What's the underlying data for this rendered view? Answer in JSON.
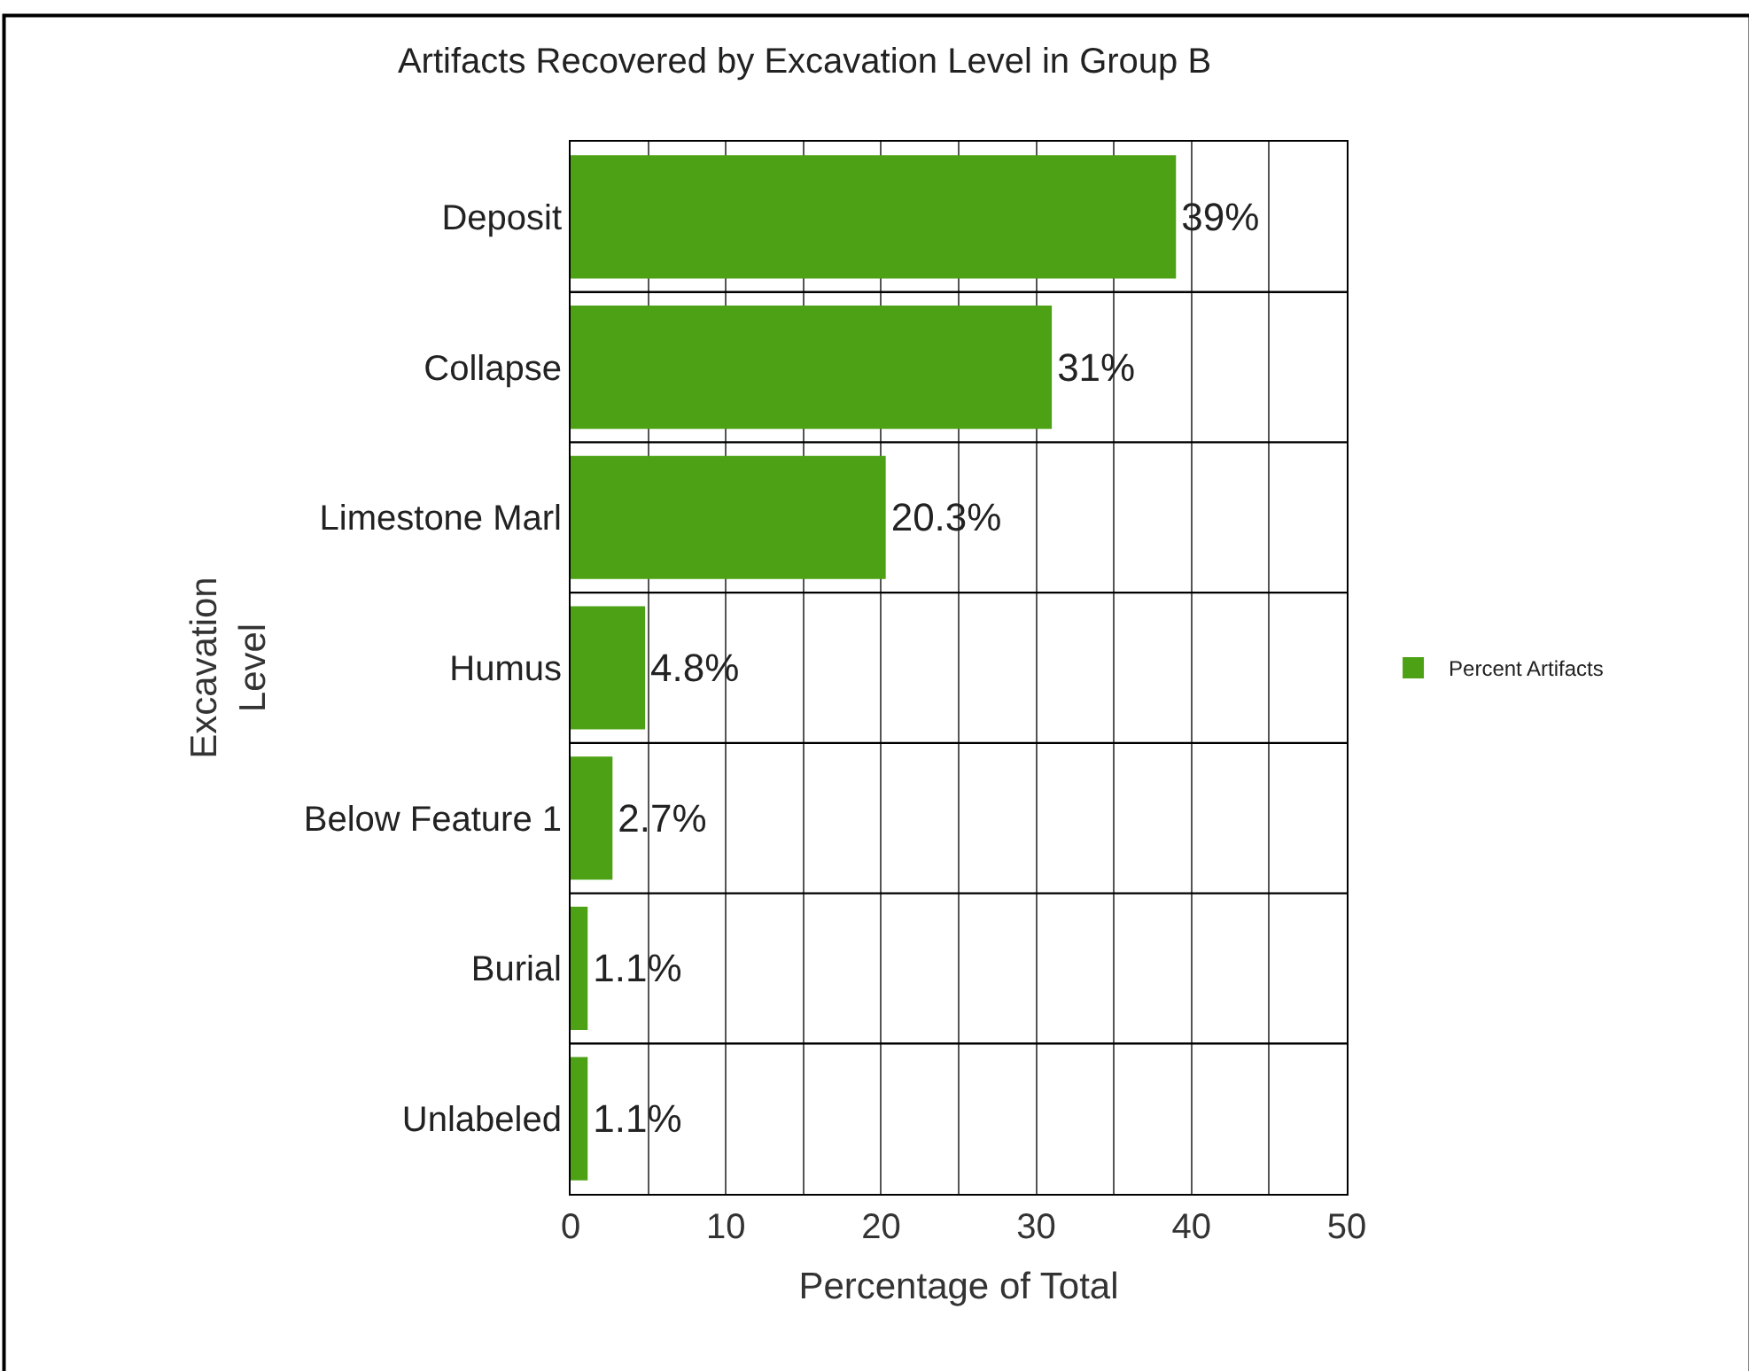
{
  "chart_data": {
    "type": "bar",
    "orientation": "horizontal",
    "title": "Artifacts Recovered by Excavation Level in Group B",
    "xlabel": "Percentage of Total",
    "ylabel": "Excavation\nLevel",
    "categories": [
      "Deposit",
      "Collapse",
      "Limestone Marl",
      "Humus",
      "Below Feature 1",
      "Burial",
      "Unlabeled"
    ],
    "series": [
      {
        "name": "Percent Artifacts",
        "color": "#4ca214",
        "values": [
          39,
          31,
          20.3,
          4.8,
          2.7,
          1.1,
          1.1
        ],
        "value_labels": [
          "39%",
          "31%",
          "20.3%",
          "4.8%",
          "2.7%",
          "1.1%",
          "1.1%"
        ]
      }
    ],
    "xlim": [
      0,
      50
    ],
    "xticks": [
      0,
      {
        "value": 5,
        "label": null
      },
      10,
      {
        "value": 15,
        "label": null
      },
      20,
      {
        "value": 25,
        "label": null
      },
      30,
      {
        "value": 35,
        "label": null
      },
      40,
      {
        "value": 45,
        "label": null
      },
      50
    ],
    "grid": true,
    "legend": "right"
  }
}
